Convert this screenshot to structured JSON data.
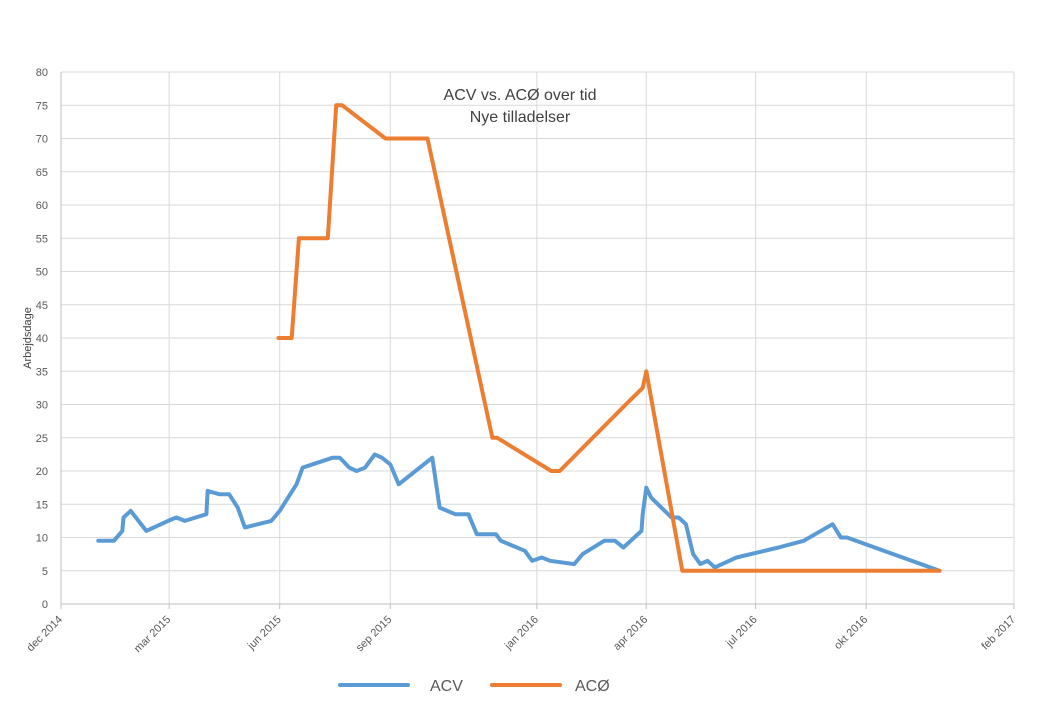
{
  "chart_data": {
    "type": "line",
    "title": "ACV vs. ACØ over tid",
    "subtitle": "Nye tilladelser",
    "xlabel": "",
    "ylabel": "Arbejdsdage",
    "ylim": [
      0,
      80
    ],
    "yticks": [
      0,
      5,
      10,
      15,
      20,
      25,
      30,
      35,
      40,
      45,
      50,
      55,
      60,
      65,
      70,
      75,
      80
    ],
    "xlim": [
      "2014-12-01",
      "2017-02-01"
    ],
    "xticks": [
      "2014-12-01",
      "2015-03-01",
      "2015-06-01",
      "2015-09-01",
      "2016-01-01",
      "2016-04-01",
      "2016-07-01",
      "2016-10-01",
      "2017-02-01"
    ],
    "xtick_labels": [
      "dec 2014",
      "mar 2015",
      "jun 2015",
      "sep 2015",
      "jan 2016",
      "apr 2016",
      "jul 2016",
      "okt 2016",
      "feb 2017"
    ],
    "grid": true,
    "legend_position": "bottom",
    "series": [
      {
        "name": "ACV",
        "color": "#5b9bd5",
        "points": [
          [
            "2015-01-01",
            9.5
          ],
          [
            "2015-01-14",
            9.5
          ],
          [
            "2015-01-21",
            11
          ],
          [
            "2015-01-22",
            13
          ],
          [
            "2015-01-28",
            14
          ],
          [
            "2015-02-10",
            11
          ],
          [
            "2015-02-28",
            12.5
          ],
          [
            "2015-03-07",
            13
          ],
          [
            "2015-03-14",
            12.5
          ],
          [
            "2015-04-01",
            13.5
          ],
          [
            "2015-04-02",
            17
          ],
          [
            "2015-04-12",
            16.5
          ],
          [
            "2015-04-20",
            16.5
          ],
          [
            "2015-04-27",
            14.5
          ],
          [
            "2015-05-03",
            11.5
          ],
          [
            "2015-05-25",
            12.5
          ],
          [
            "2015-06-01",
            14
          ],
          [
            "2015-06-15",
            18
          ],
          [
            "2015-06-20",
            20.5
          ],
          [
            "2015-07-15",
            22
          ],
          [
            "2015-07-21",
            22
          ],
          [
            "2015-07-29",
            20.5
          ],
          [
            "2015-08-04",
            20
          ],
          [
            "2015-08-11",
            20.5
          ],
          [
            "2015-08-19",
            22.5
          ],
          [
            "2015-08-25",
            22
          ],
          [
            "2015-09-01",
            21
          ],
          [
            "2015-09-08",
            18
          ],
          [
            "2015-10-06",
            22
          ],
          [
            "2015-10-12",
            14.5
          ],
          [
            "2015-10-25",
            13.5
          ],
          [
            "2015-11-05",
            13.5
          ],
          [
            "2015-11-12",
            10.5
          ],
          [
            "2015-11-28",
            10.5
          ],
          [
            "2015-12-02",
            9.5
          ],
          [
            "2015-12-22",
            8
          ],
          [
            "2015-12-28",
            6.5
          ],
          [
            "2016-01-05",
            7
          ],
          [
            "2016-01-12",
            6.5
          ],
          [
            "2016-02-01",
            6
          ],
          [
            "2016-02-08",
            7.5
          ],
          [
            "2016-02-26",
            9.5
          ],
          [
            "2016-03-06",
            9.5
          ],
          [
            "2016-03-13",
            8.5
          ],
          [
            "2016-03-28",
            11
          ],
          [
            "2016-03-29",
            13.5
          ],
          [
            "2016-04-01",
            17.5
          ],
          [
            "2016-04-05",
            16
          ],
          [
            "2016-04-22",
            13
          ],
          [
            "2016-04-28",
            13
          ],
          [
            "2016-05-04",
            12
          ],
          [
            "2016-05-10",
            7.5
          ],
          [
            "2016-05-16",
            6
          ],
          [
            "2016-05-22",
            6.5
          ],
          [
            "2016-05-28",
            5.5
          ],
          [
            "2016-06-15",
            7
          ],
          [
            "2016-07-20",
            8.5
          ],
          [
            "2016-08-10",
            9.5
          ],
          [
            "2016-09-03",
            12
          ],
          [
            "2016-09-10",
            10
          ],
          [
            "2016-09-15",
            10
          ],
          [
            "2016-12-01",
            5
          ]
        ]
      },
      {
        "name": "ACØ",
        "color": "#ed7d31",
        "points": [
          [
            "2015-05-31",
            40
          ],
          [
            "2015-06-11",
            40
          ],
          [
            "2015-06-17",
            55
          ],
          [
            "2015-07-11",
            55
          ],
          [
            "2015-07-18",
            75
          ],
          [
            "2015-07-23",
            75
          ],
          [
            "2015-08-28",
            70
          ],
          [
            "2015-09-01",
            70
          ],
          [
            "2015-10-02",
            70
          ],
          [
            "2015-11-25",
            25
          ],
          [
            "2015-11-29",
            25
          ],
          [
            "2016-01-13",
            20
          ],
          [
            "2016-01-20",
            20
          ],
          [
            "2016-03-15",
            30
          ],
          [
            "2016-03-29",
            32.5
          ],
          [
            "2016-04-01",
            35
          ],
          [
            "2016-05-01",
            5
          ],
          [
            "2016-12-01",
            5
          ]
        ]
      }
    ]
  }
}
